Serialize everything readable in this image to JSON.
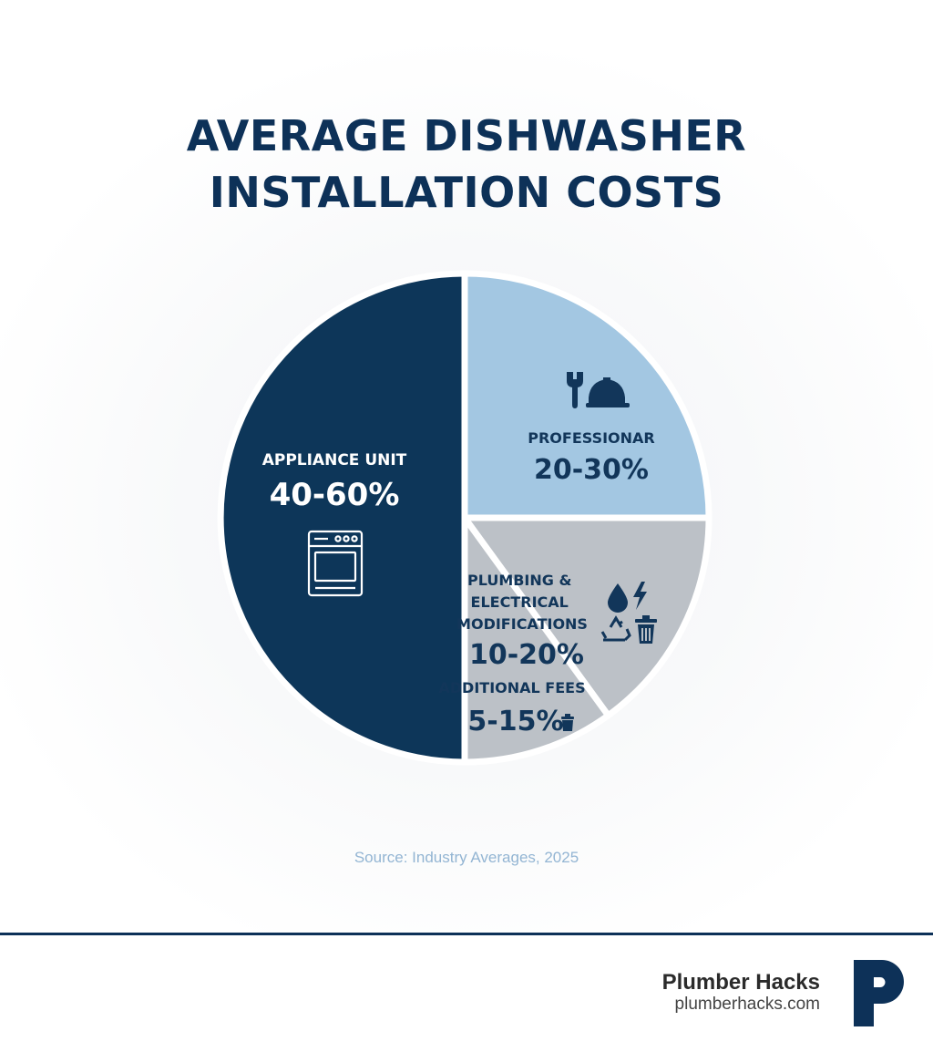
{
  "title_line1": "AVERAGE DISHWASHER",
  "title_line2": "INSTALLATION COSTS",
  "chart_data": {
    "type": "pie",
    "slices": [
      {
        "label": "APPLIANCE UNIT",
        "range": "40-60%",
        "value": 50,
        "color": "#0d3659",
        "text_color": "#ffffff",
        "icons": [
          "stove-icon"
        ]
      },
      {
        "label": "PROFESSIONAR",
        "range": "20-30%",
        "value": 25,
        "color": "#a3c7e2",
        "text_color": "#12365a",
        "icons": [
          "wrench-icon",
          "hard-hat-icon"
        ]
      },
      {
        "label": "PLUMBING & ELECTRICAL MODIFICATIONS",
        "range": "10-20%",
        "value": 15,
        "color": "#bcc1c7",
        "text_color": "#12365a",
        "icons": [
          "water-drop-icon",
          "lightning-icon",
          "recycle-icon",
          "trash-icon"
        ]
      },
      {
        "label": "ADDITIONAL FEES",
        "range": "5-15%",
        "value": 10,
        "color": "#bcc1c7",
        "text_color": "#12365a",
        "icons": [
          "trash-icon"
        ]
      }
    ],
    "legend": "none"
  },
  "source": "Source: Industry Averages, 2025",
  "brand": {
    "name": "Plumber Hacks",
    "url": "plumberhacks.com"
  }
}
